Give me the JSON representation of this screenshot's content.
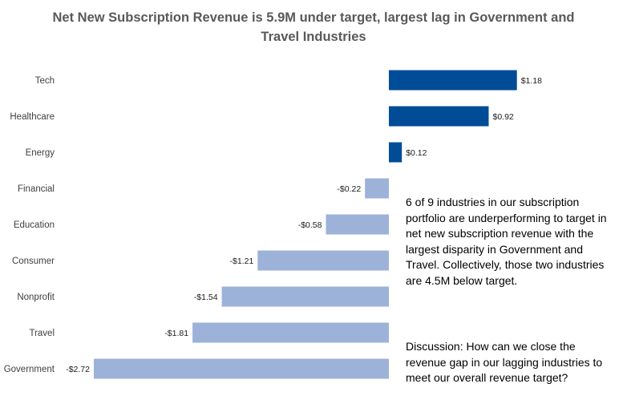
{
  "title": "Net New Subscription Revenue is 5.9M under target, largest lag in Government and Travel Industries",
  "notes": {
    "main": "6 of 9 industries in our subscription portfolio are underperforming to target in net new subscription revenue with the largest disparity in Government and Travel. Collectively, those two industries are 4.5M below target.",
    "discussion": "Discussion: How can we close the revenue gap in our lagging industries to meet our overall revenue target?"
  },
  "colors": {
    "positive": "#004C97",
    "negative": "#9DB2D9"
  },
  "chart_data": {
    "type": "bar",
    "orientation": "horizontal",
    "title": "Net New Subscription Revenue is 5.9M under target, largest lag in Government and Travel Industries",
    "categories": [
      "Tech",
      "Healthcare",
      "Energy",
      "Financial",
      "Education",
      "Consumer",
      "Nonprofit",
      "Travel",
      "Government"
    ],
    "values": [
      1.18,
      0.92,
      0.12,
      -0.22,
      -0.58,
      -1.21,
      -1.54,
      -1.81,
      -2.72
    ],
    "labels": [
      "$1.18",
      "$0.92",
      "$0.12",
      "-$0.22",
      "-$0.58",
      "-$1.21",
      "-$1.54",
      "-$1.81",
      "-$2.72"
    ],
    "xlim": [
      -2.72,
      1.18
    ]
  }
}
